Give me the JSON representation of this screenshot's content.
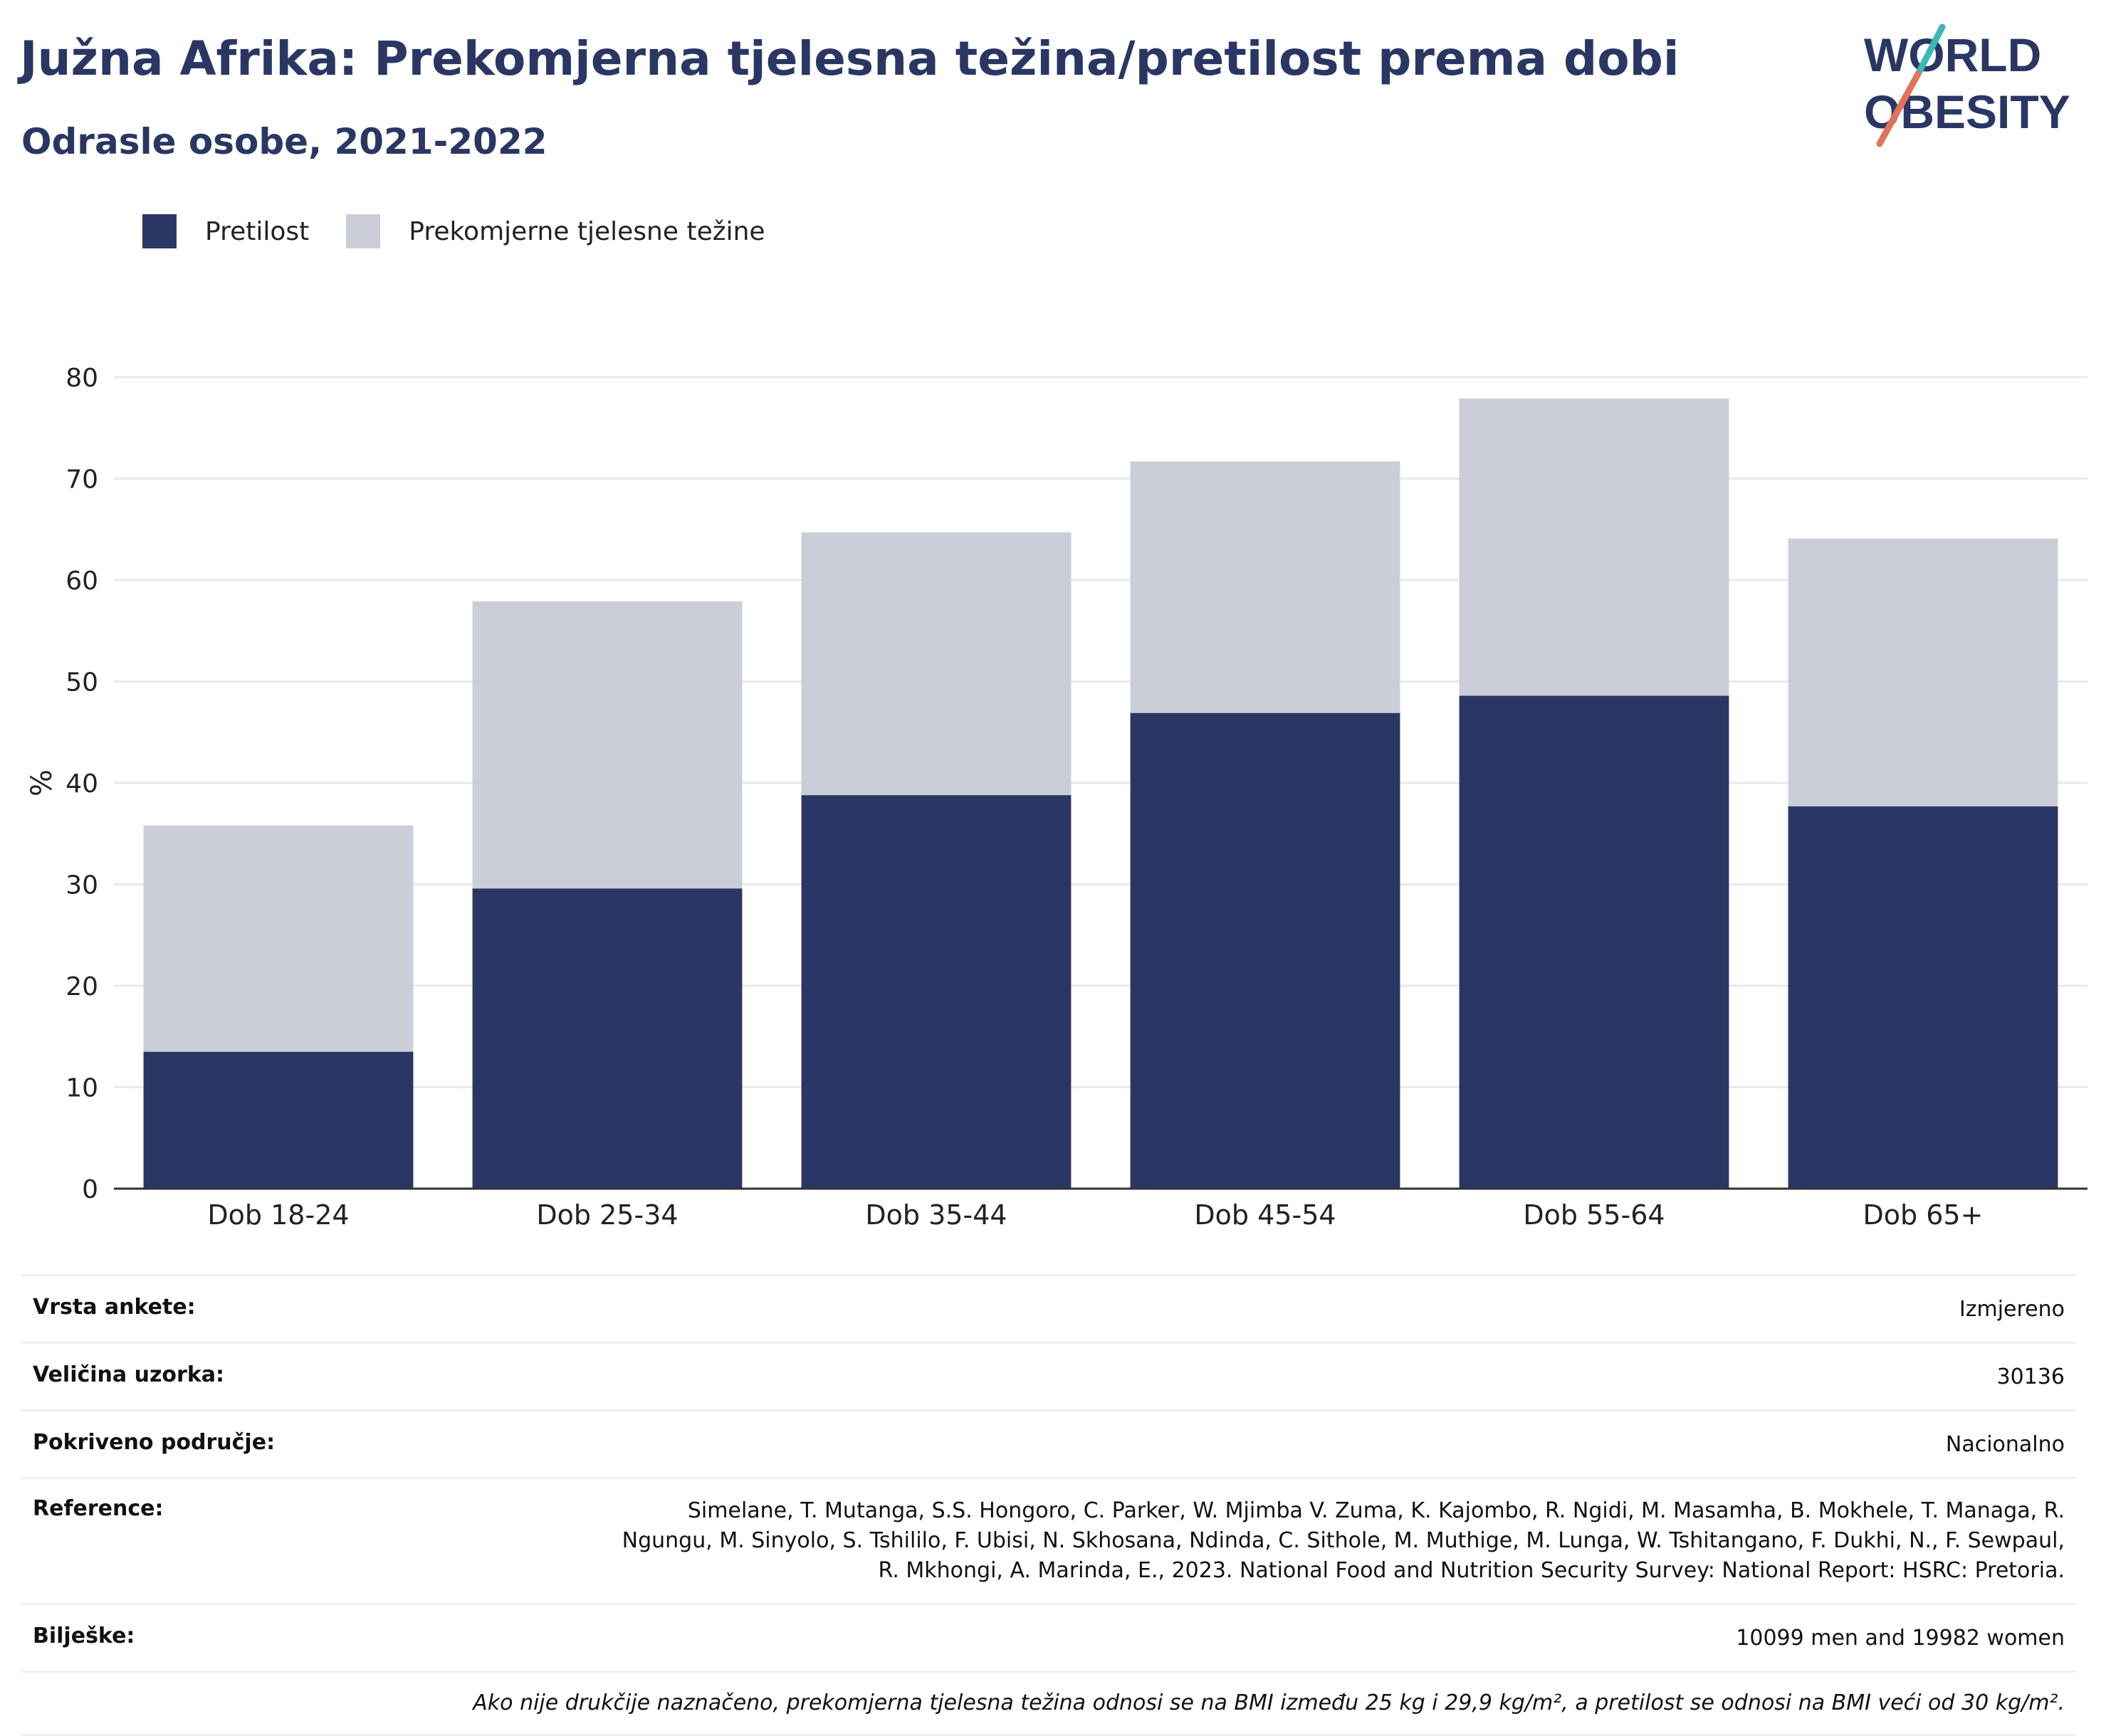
{
  "header": {
    "title": "Južna Afrika: Prekomjerna tjelesna težina/pretilost prema dobi",
    "subtitle": "Odrasle osobe, 2021-2022"
  },
  "logo": {
    "line1": "WORLD",
    "line2": "OBESITY"
  },
  "legend": [
    {
      "label": "Pretilost",
      "color": "#2a3764"
    },
    {
      "label": "Prekomjerne tjelesne težine",
      "color": "#cbcdd9"
    }
  ],
  "chart_data": {
    "type": "bar",
    "stacked": true,
    "categories": [
      "Dob 18-24",
      "Dob 25-34",
      "Dob 35-44",
      "Dob 45-54",
      "Dob 55-64",
      "Dob 65+"
    ],
    "series": [
      {
        "name": "Pretilost",
        "color": "#2a3764",
        "values": [
          13.5,
          29.6,
          38.8,
          46.9,
          48.6,
          37.7
        ]
      },
      {
        "name": "Prekomjerne tjelesne težine",
        "color": "#cbcdd9",
        "values": [
          22.3,
          28.3,
          25.9,
          24.8,
          29.3,
          26.4
        ]
      }
    ],
    "ylabel": "%",
    "ylim": [
      0,
      80
    ],
    "yticks": [
      0,
      10,
      20,
      30,
      40,
      50,
      60,
      70,
      80
    ],
    "grid": true,
    "legend_position": "top-left"
  },
  "info": {
    "survey_type": {
      "label": "Vrsta ankete:",
      "value": "Izmjereno"
    },
    "sample_size": {
      "label": "Veličina uzorka:",
      "value": "30136"
    },
    "coverage": {
      "label": "Pokriveno područje:",
      "value": "Nacionalno"
    },
    "references": {
      "label": "Reference:",
      "line1": "Simelane, T. Mutanga, S.S. Hongoro, C. Parker, W. Mjimba V. Zuma, K. Kajombo, R. Ngidi, M. Masamha, B. Mokhele, T. Managa, R.",
      "line2": "Ngungu, M. Sinyolo, S. Tshililo, F. Ubisi, N. Skhosana, Ndinda, C. Sithole, M. Muthige, M. Lunga, W. Tshitangano, F. Dukhi, N., F. Sewpaul,",
      "line3": "R. Mkhongi, A. Marinda, E., 2023. National Food and Nutrition Security Survey: National Report: HSRC: Pretoria."
    },
    "notes": {
      "label": "Bilješke:",
      "value": "10099 men and 19982 women"
    },
    "footnote": "Ako nije drukčije naznačeno, prekomjerna tjelesna težina odnosi se na BMI između 25 kg i 29,9 kg/m², a pretilost se odnosi na BMI veći od 30 kg/m²."
  }
}
